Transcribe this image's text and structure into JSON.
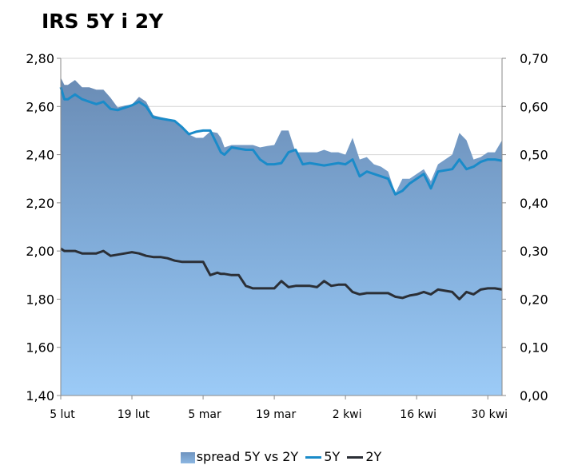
{
  "chart_data": {
    "type": "area",
    "title": "IRS 5Y i 2Y",
    "y_left": {
      "min": 1.4,
      "max": 2.8,
      "step": 0.2,
      "ticks": [
        "1,40",
        "1,60",
        "1,80",
        "2,00",
        "2,20",
        "2,40",
        "2,60",
        "2,80"
      ]
    },
    "y_right": {
      "min": 0.0,
      "max": 0.7,
      "step": 0.1,
      "ticks": [
        "0,00",
        "0,10",
        "0,20",
        "0,30",
        "0,40",
        "0,50",
        "0,60",
        "0,70"
      ]
    },
    "x_range": [
      0,
      62
    ],
    "x_ticks": [
      {
        "label": "5 lut",
        "x": 0
      },
      {
        "label": "19 lut",
        "x": 10
      },
      {
        "label": "5 mar",
        "x": 20
      },
      {
        "label": "19 mar",
        "x": 30
      },
      {
        "label": "2 kwi",
        "x": 40
      },
      {
        "label": "16 kwi",
        "x": 50
      },
      {
        "label": "30 kwi",
        "x": 60
      }
    ],
    "grid": "horizontal",
    "legend_position": "bottom",
    "series": [
      {
        "name": "spread 5Y vs 2Y",
        "type": "area",
        "axis": "right",
        "color": "#7aa3d0",
        "x": [
          0,
          0.5,
          1,
          2,
          3,
          4,
          5,
          6,
          7,
          8,
          9,
          10,
          11,
          12,
          13,
          14,
          15,
          16,
          17,
          18,
          19,
          20,
          21,
          22,
          22.5,
          23,
          24,
          25,
          26,
          27,
          28,
          29,
          30,
          31,
          32,
          33,
          34,
          35,
          36,
          37,
          38,
          39,
          40,
          41,
          42,
          43,
          44,
          45,
          46,
          47,
          48,
          49,
          50,
          51,
          52,
          53,
          54,
          55,
          56,
          57,
          58,
          59,
          60,
          61,
          62
        ],
        "values": [
          0.66,
          0.645,
          0.645,
          0.655,
          0.64,
          0.64,
          0.635,
          0.635,
          0.618,
          0.598,
          0.602,
          0.604,
          0.62,
          0.61,
          0.582,
          0.578,
          0.575,
          0.57,
          0.558,
          0.542,
          0.535,
          0.535,
          0.548,
          0.545,
          0.535,
          0.515,
          0.52,
          0.52,
          0.52,
          0.52,
          0.515,
          0.518,
          0.52,
          0.55,
          0.55,
          0.505,
          0.505,
          0.505,
          0.505,
          0.51,
          0.505,
          0.505,
          0.5,
          0.535,
          0.49,
          0.495,
          0.48,
          0.475,
          0.465,
          0.42,
          0.45,
          0.45,
          0.46,
          0.47,
          0.445,
          0.48,
          0.49,
          0.5,
          0.545,
          0.53,
          0.49,
          0.495,
          0.505,
          0.505,
          0.53
        ]
      },
      {
        "name": "5Y",
        "type": "line",
        "axis": "left",
        "color": "#1a8bc9",
        "x": [
          0,
          0.5,
          1,
          2,
          3,
          4,
          5,
          6,
          7,
          8,
          9,
          10,
          11,
          12,
          13,
          14,
          15,
          16,
          17,
          18,
          19,
          20,
          21,
          22,
          22.5,
          23,
          24,
          25,
          26,
          27,
          28,
          29,
          30,
          31,
          32,
          33,
          34,
          35,
          36,
          37,
          38,
          39,
          40,
          41,
          42,
          43,
          44,
          45,
          46,
          47,
          48,
          49,
          50,
          51,
          52,
          53,
          54,
          55,
          56,
          57,
          58,
          59,
          60,
          61,
          62
        ],
        "values": [
          2.68,
          2.63,
          2.63,
          2.65,
          2.63,
          2.62,
          2.61,
          2.62,
          2.59,
          2.585,
          2.595,
          2.605,
          2.62,
          2.6,
          2.555,
          2.55,
          2.545,
          2.54,
          2.515,
          2.485,
          2.495,
          2.5,
          2.5,
          2.44,
          2.41,
          2.4,
          2.43,
          2.425,
          2.42,
          2.42,
          2.38,
          2.36,
          2.36,
          2.365,
          2.41,
          2.42,
          2.36,
          2.365,
          2.36,
          2.355,
          2.36,
          2.365,
          2.36,
          2.38,
          2.31,
          2.33,
          2.32,
          2.31,
          2.3,
          2.235,
          2.25,
          2.28,
          2.3,
          2.32,
          2.26,
          2.33,
          2.335,
          2.34,
          2.38,
          2.34,
          2.35,
          2.37,
          2.38,
          2.38,
          2.375
        ]
      },
      {
        "name": "2Y",
        "type": "line",
        "axis": "left",
        "color": "#2b2f36",
        "x": [
          0,
          0.5,
          1,
          2,
          3,
          4,
          5,
          6,
          7,
          8,
          9,
          10,
          11,
          12,
          13,
          14,
          15,
          16,
          17,
          18,
          19,
          20,
          21,
          22,
          22.5,
          23,
          24,
          25,
          26,
          27,
          28,
          29,
          30,
          31,
          32,
          33,
          34,
          35,
          36,
          37,
          38,
          39,
          40,
          41,
          42,
          43,
          44,
          45,
          46,
          47,
          48,
          49,
          50,
          51,
          52,
          53,
          54,
          55,
          56,
          57,
          58,
          59,
          60,
          61,
          62
        ],
        "values": [
          2.01,
          2.0,
          2.0,
          2.0,
          1.99,
          1.99,
          1.99,
          2.0,
          1.98,
          1.985,
          1.99,
          1.995,
          1.99,
          1.98,
          1.975,
          1.975,
          1.97,
          1.96,
          1.955,
          1.955,
          1.955,
          1.955,
          1.9,
          1.91,
          1.905,
          1.905,
          1.9,
          1.9,
          1.855,
          1.845,
          1.845,
          1.845,
          1.845,
          1.875,
          1.85,
          1.855,
          1.855,
          1.855,
          1.85,
          1.875,
          1.855,
          1.86,
          1.86,
          1.83,
          1.82,
          1.825,
          1.825,
          1.825,
          1.825,
          1.81,
          1.805,
          1.815,
          1.82,
          1.83,
          1.82,
          1.84,
          1.835,
          1.83,
          1.8,
          1.83,
          1.82,
          1.84,
          1.845,
          1.845,
          1.84
        ]
      }
    ]
  }
}
